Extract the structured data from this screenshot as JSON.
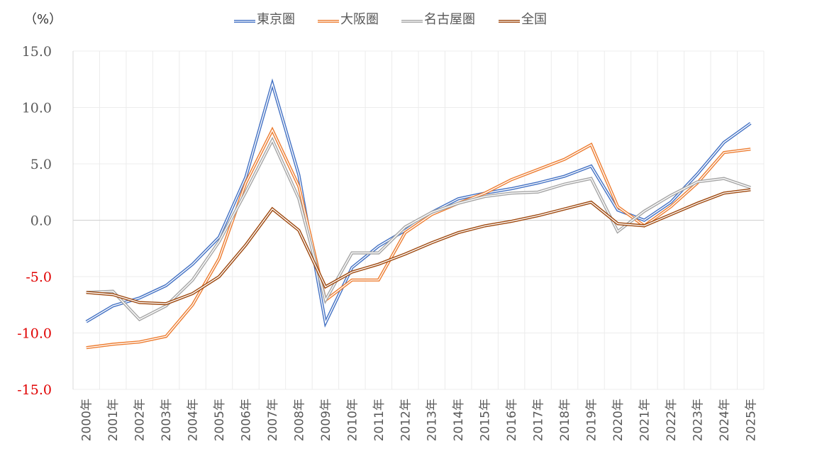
{
  "chart_data": {
    "type": "line",
    "title": "",
    "ylabel": "（%）",
    "xlabel": "",
    "ylim": [
      -15,
      15
    ],
    "ytick_step": 5,
    "grid": true,
    "legend_position": "top",
    "negative_tick_color": "#e00000",
    "categories": [
      "2000年",
      "2001年",
      "2002年",
      "2003年",
      "2004年",
      "2005年",
      "2006年",
      "2007年",
      "2008年",
      "2009年",
      "2010年",
      "2011年",
      "2012年",
      "2013年",
      "2014年",
      "2015年",
      "2016年",
      "2017年",
      "2018年",
      "2019年",
      "2020年",
      "2021年",
      "2022年",
      "2023年",
      "2024年",
      "2025年"
    ],
    "series": [
      {
        "name": "東京圏",
        "color": "#4472c4",
        "values": [
          -9.0,
          -7.6,
          -6.9,
          -5.8,
          -3.9,
          -1.5,
          3.8,
          12.1,
          4.0,
          -9.1,
          -4.2,
          -2.3,
          -0.9,
          0.7,
          1.9,
          2.4,
          2.8,
          3.3,
          3.9,
          4.8,
          0.9,
          0.0,
          1.6,
          4.1,
          6.9,
          8.6
        ]
      },
      {
        "name": "大阪圏",
        "color": "#ed7d31",
        "values": [
          -11.3,
          -11.0,
          -10.8,
          -10.3,
          -7.5,
          -3.4,
          3.3,
          8.0,
          3.0,
          -7.1,
          -5.3,
          -5.3,
          -1.1,
          0.5,
          1.5,
          2.4,
          3.6,
          4.5,
          5.4,
          6.7,
          1.2,
          -0.5,
          1.2,
          3.3,
          6.0,
          6.3
        ]
      },
      {
        "name": "名古屋圏",
        "color": "#a5a5a5",
        "values": [
          -6.4,
          -6.3,
          -8.8,
          -7.6,
          -5.3,
          -1.9,
          2.5,
          7.1,
          1.9,
          -7.1,
          -2.9,
          -2.9,
          -0.6,
          0.7,
          1.5,
          2.1,
          2.4,
          2.5,
          3.2,
          3.7,
          -1.0,
          0.8,
          2.2,
          3.4,
          3.7,
          2.9
        ]
      },
      {
        "name": "全国",
        "color": "#9e480e",
        "values": [
          -6.4,
          -6.6,
          -7.3,
          -7.4,
          -6.5,
          -5.0,
          -2.2,
          1.0,
          -0.9,
          -5.9,
          -4.6,
          -3.9,
          -3.0,
          -2.0,
          -1.1,
          -0.5,
          -0.1,
          0.4,
          1.0,
          1.6,
          -0.3,
          -0.5,
          0.5,
          1.5,
          2.4,
          2.7
        ]
      }
    ]
  }
}
